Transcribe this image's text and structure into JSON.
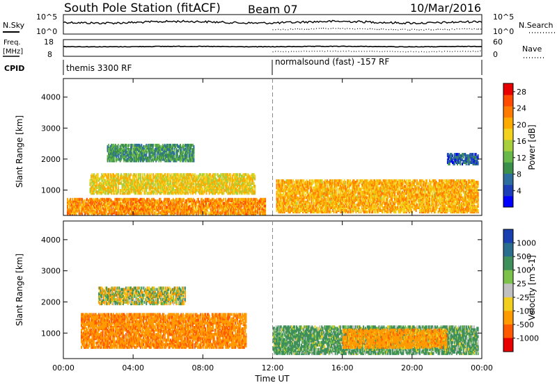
{
  "header": {
    "station": "South Pole Station (fitACF)",
    "beam": "Beam 07",
    "date": "10/Mar/2016"
  },
  "summary_panels": {
    "nsky": {
      "label": "N.Sky",
      "ticks": [
        "10^5",
        "10^0"
      ]
    },
    "nsearch": {
      "label": "N.Search",
      "ticks": [
        "10^5",
        "10^0"
      ]
    },
    "freq": {
      "label_line1": "Freq.",
      "label_line2": "[MHz]",
      "ticks": [
        "18",
        "8"
      ]
    },
    "nave": {
      "label": "Nave",
      "ticks": [
        "60",
        "0"
      ]
    },
    "cpid": {
      "label": "CPID",
      "segments": [
        "themis 3300 RF",
        "normalsound (fast) -157 RF"
      ]
    }
  },
  "colors": {
    "power": [
      "#0000ff",
      "#1c3fb8",
      "#2e6e9e",
      "#3a8f4a",
      "#68b84a",
      "#a8cf3c",
      "#f2d21e",
      "#ffaa00",
      "#ff7a00",
      "#ff4a00",
      "#e80000"
    ],
    "velocity": [
      "#1a3fb0",
      "#2a6e8e",
      "#3e8f5a",
      "#7cc24a",
      "#c0c0c0",
      "#f2cf1e",
      "#ff9a00",
      "#ff5a00",
      "#e80000"
    ]
  },
  "chart_data": [
    {
      "type": "heatmap",
      "title": "",
      "ylabel": "Slant Range [km]",
      "xlabel": "",
      "x_ticks": [
        "00:00",
        "04:00",
        "08:00",
        "12:00",
        "16:00",
        "20:00",
        "00:00"
      ],
      "y_ticks": [
        "1000",
        "2000",
        "3000",
        "4000"
      ],
      "xlim": [
        0,
        24
      ],
      "ylim": [
        180,
        4600
      ],
      "colorbar": {
        "label": "Power [dB]",
        "ticks": [
          "4",
          "8",
          "12",
          "16",
          "20",
          "24",
          "28"
        ],
        "range": [
          0,
          30
        ]
      },
      "features": [
        {
          "t0": 0.2,
          "t1": 11.6,
          "r0": 180,
          "r1": 700,
          "value": 22
        },
        {
          "t0": 1.5,
          "t1": 11.0,
          "r0": 850,
          "r1": 1500,
          "value": 18
        },
        {
          "t0": 2.5,
          "t1": 7.5,
          "r0": 1900,
          "r1": 2450,
          "value": 10
        },
        {
          "t0": 12.2,
          "t1": 23.8,
          "r0": 250,
          "r1": 1300,
          "value": 20
        },
        {
          "t0": 22.0,
          "t1": 23.8,
          "r0": 1800,
          "r1": 2150,
          "value": 6
        }
      ]
    },
    {
      "type": "heatmap",
      "title": "",
      "ylabel": "Slant Range [km]",
      "xlabel": "Time UT",
      "x_ticks": [
        "00:00",
        "04:00",
        "08:00",
        "12:00",
        "16:00",
        "20:00",
        "00:00"
      ],
      "y_ticks": [
        "1000",
        "2000",
        "3000",
        "4000"
      ],
      "xlim": [
        0,
        24
      ],
      "ylim": [
        180,
        4600
      ],
      "colorbar": {
        "label": "Velocity [m s-1]",
        "ticks": [
          "1000",
          "500",
          "100",
          "25",
          "-25",
          "-100",
          "-500",
          "-1000"
        ],
        "range": [
          -1000,
          1000
        ]
      },
      "features": [
        {
          "t0": 1.0,
          "t1": 10.5,
          "r0": 500,
          "r1": 1600,
          "value": -400
        },
        {
          "t0": 2.0,
          "t1": 7.0,
          "r0": 1900,
          "r1": 2450,
          "value": 0
        },
        {
          "t0": 12.0,
          "t1": 23.8,
          "r0": 300,
          "r1": 1200,
          "value": 200
        },
        {
          "t0": 16.0,
          "t1": 22.0,
          "r0": 500,
          "r1": 1100,
          "value": -300
        }
      ]
    }
  ]
}
